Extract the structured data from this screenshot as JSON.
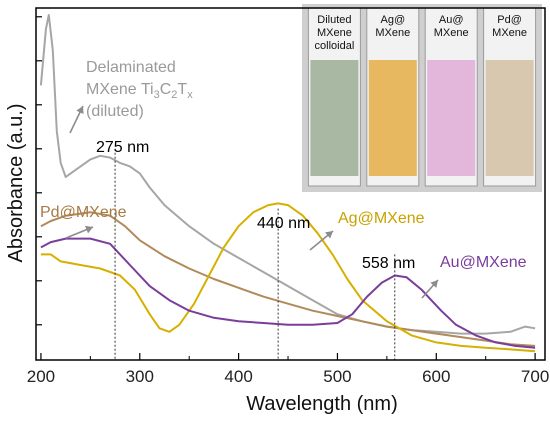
{
  "chart_data": {
    "type": "line",
    "xlabel": "Wavelength (nm)",
    "ylabel": "Absorbance (a.u.)",
    "xlim": [
      195,
      710
    ],
    "ylim": [
      0,
      1.0
    ],
    "x_ticks": [
      200,
      300,
      400,
      500,
      600,
      700
    ],
    "x_tick_labels": [
      "200",
      "300",
      "400",
      "500",
      "600",
      "700"
    ],
    "y_tick_labels_shown": false,
    "grid": false,
    "series": [
      {
        "name": "Delaminated MXene Ti3C2Tx (diluted)",
        "color": "#a6a6a6",
        "x": [
          200,
          205,
          208,
          212,
          216,
          220,
          225,
          230,
          240,
          250,
          260,
          270,
          280,
          290,
          300,
          310,
          325,
          350,
          375,
          400,
          425,
          450,
          475,
          500,
          525,
          550,
          575,
          600,
          625,
          650,
          675,
          690,
          700
        ],
        "y": [
          0.78,
          0.94,
          0.98,
          0.88,
          0.65,
          0.56,
          0.52,
          0.53,
          0.55,
          0.57,
          0.58,
          0.575,
          0.56,
          0.55,
          0.53,
          0.49,
          0.44,
          0.38,
          0.33,
          0.29,
          0.25,
          0.21,
          0.17,
          0.13,
          0.11,
          0.095,
          0.085,
          0.08,
          0.075,
          0.075,
          0.08,
          0.095,
          0.09
        ]
      },
      {
        "name": "Pd@MXene",
        "color": "#b08a5a",
        "x": [
          200,
          210,
          225,
          250,
          270,
          285,
          300,
          325,
          350,
          375,
          400,
          425,
          450,
          475,
          500,
          525,
          550,
          575,
          600,
          625,
          650,
          675,
          700
        ],
        "y": [
          0.38,
          0.395,
          0.41,
          0.42,
          0.41,
          0.38,
          0.34,
          0.295,
          0.26,
          0.23,
          0.205,
          0.18,
          0.16,
          0.14,
          0.125,
          0.11,
          0.095,
          0.085,
          0.075,
          0.065,
          0.055,
          0.045,
          0.04
        ]
      },
      {
        "name": "Ag@MXene",
        "color": "#d6b000",
        "x": [
          200,
          210,
          220,
          240,
          260,
          280,
          295,
          310,
          320,
          330,
          340,
          355,
          370,
          385,
          400,
          415,
          430,
          440,
          450,
          465,
          480,
          495,
          510,
          525,
          550,
          575,
          600,
          625,
          650,
          675,
          700
        ],
        "y": [
          0.3,
          0.3,
          0.28,
          0.27,
          0.26,
          0.24,
          0.2,
          0.13,
          0.09,
          0.08,
          0.1,
          0.16,
          0.24,
          0.32,
          0.38,
          0.42,
          0.44,
          0.445,
          0.44,
          0.41,
          0.36,
          0.3,
          0.23,
          0.17,
          0.11,
          0.07,
          0.05,
          0.04,
          0.035,
          0.03,
          0.025
        ]
      },
      {
        "name": "Au@MXene",
        "color": "#7a3d9c",
        "x": [
          200,
          210,
          225,
          250,
          270,
          290,
          310,
          330,
          350,
          375,
          400,
          425,
          450,
          475,
          500,
          515,
          530,
          545,
          558,
          570,
          585,
          595,
          605,
          620,
          640,
          660,
          680,
          700
        ],
        "y": [
          0.32,
          0.335,
          0.345,
          0.345,
          0.33,
          0.27,
          0.21,
          0.17,
          0.14,
          0.12,
          0.11,
          0.105,
          0.1,
          0.1,
          0.105,
          0.13,
          0.18,
          0.22,
          0.24,
          0.235,
          0.2,
          0.17,
          0.14,
          0.1,
          0.07,
          0.05,
          0.04,
          0.035
        ]
      }
    ],
    "annotations": [
      {
        "text": "275 nm",
        "x": 275,
        "color": "#000000"
      },
      {
        "text": "440 nm",
        "x": 440,
        "color": "#000000"
      },
      {
        "text": "558 nm",
        "x": 558,
        "color": "#000000"
      }
    ],
    "series_labels": {
      "mxene_line1": "Delaminated",
      "mxene_line2_prefix": "MXene Ti",
      "mxene_sub1": "3",
      "mxene_mid": "C",
      "mxene_sub2": "2",
      "mxene_end": "T",
      "mxene_sub3": "x",
      "mxene_line3": "(diluted)",
      "pd": "Pd@MXene",
      "ag": "Ag@MXene",
      "au": "Au@MXene"
    },
    "inset": {
      "vials": [
        {
          "label_lines": [
            "Diluted",
            "MXene",
            "colloidal"
          ],
          "color": "#a8b8a2"
        },
        {
          "label_lines": [
            "Ag@",
            "MXene"
          ],
          "color": "#e8b860"
        },
        {
          "label_lines": [
            "Au@",
            "MXene"
          ],
          "color": "#e3b6dc"
        },
        {
          "label_lines": [
            "Pd@",
            "MXene"
          ],
          "color": "#d8c8b0"
        }
      ]
    }
  }
}
